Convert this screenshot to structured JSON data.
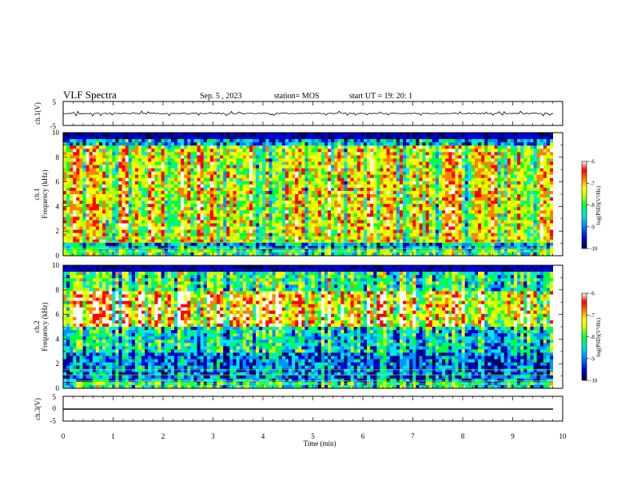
{
  "header": {
    "title": "VLF Spectra",
    "date": "Sep. 5 , 2023",
    "station": "station= MOS",
    "start": "start  UT  =   19: 20: 1"
  },
  "chart_data": [
    {
      "type": "line",
      "ylabel": "ch.1(V)",
      "ylim": [
        -5,
        5
      ],
      "y_ticks": [
        "5",
        "-5"
      ],
      "xlim": [
        0,
        10
      ],
      "series_level": 0
    },
    {
      "type": "heatmap",
      "ylabel": "ch.1\nFrequency (kHz)",
      "ylabel_lines": [
        "ch.1",
        "Frequency (kHz)"
      ],
      "ylim": [
        0,
        10
      ],
      "y_ticks": [
        "0",
        "2",
        "4",
        "6",
        "8",
        "10"
      ],
      "xlim": [
        0,
        10
      ],
      "colorbar": {
        "label": "log(PSD)(V²/Hz)",
        "range": [
          -10,
          -6
        ],
        "ticks": [
          "-6",
          "-7",
          "-8",
          "-9",
          "-10"
        ]
      },
      "dominant_band_khz": [
        1,
        9
      ]
    },
    {
      "type": "heatmap",
      "ylabel": "ch.2\nFrequency (kHz)",
      "ylabel_lines": [
        "ch.2",
        "Frequency (kHz)"
      ],
      "ylim": [
        0,
        10
      ],
      "y_ticks": [
        "0",
        "2",
        "4",
        "6",
        "8",
        "10"
      ],
      "xlim": [
        0,
        10
      ],
      "colorbar": {
        "label": "log(PSD)(V²/Hz)",
        "range": [
          -10,
          -6
        ],
        "ticks": [
          "-6",
          "-7",
          "-8",
          "-9",
          "-10"
        ]
      },
      "dominant_band_khz": [
        5,
        8
      ]
    },
    {
      "type": "line",
      "ylabel": "ch.3(V)",
      "ylim": [
        -5,
        5
      ],
      "y_ticks": [
        "5",
        "0",
        "-5"
      ],
      "xlim": [
        0,
        10
      ],
      "series_level": -1
    }
  ],
  "x_axis": {
    "label": "Time  (min)",
    "ticks": [
      "0",
      "1",
      "2",
      "3",
      "4",
      "5",
      "6",
      "7",
      "8",
      "9",
      "10"
    ]
  },
  "colors": {
    "colormap": [
      "#00005a",
      "#0000d0",
      "#0090ff",
      "#00e8e8",
      "#00ff40",
      "#c0ff00",
      "#ffff00",
      "#ff8000",
      "#ff0000",
      "#ffffff"
    ]
  }
}
